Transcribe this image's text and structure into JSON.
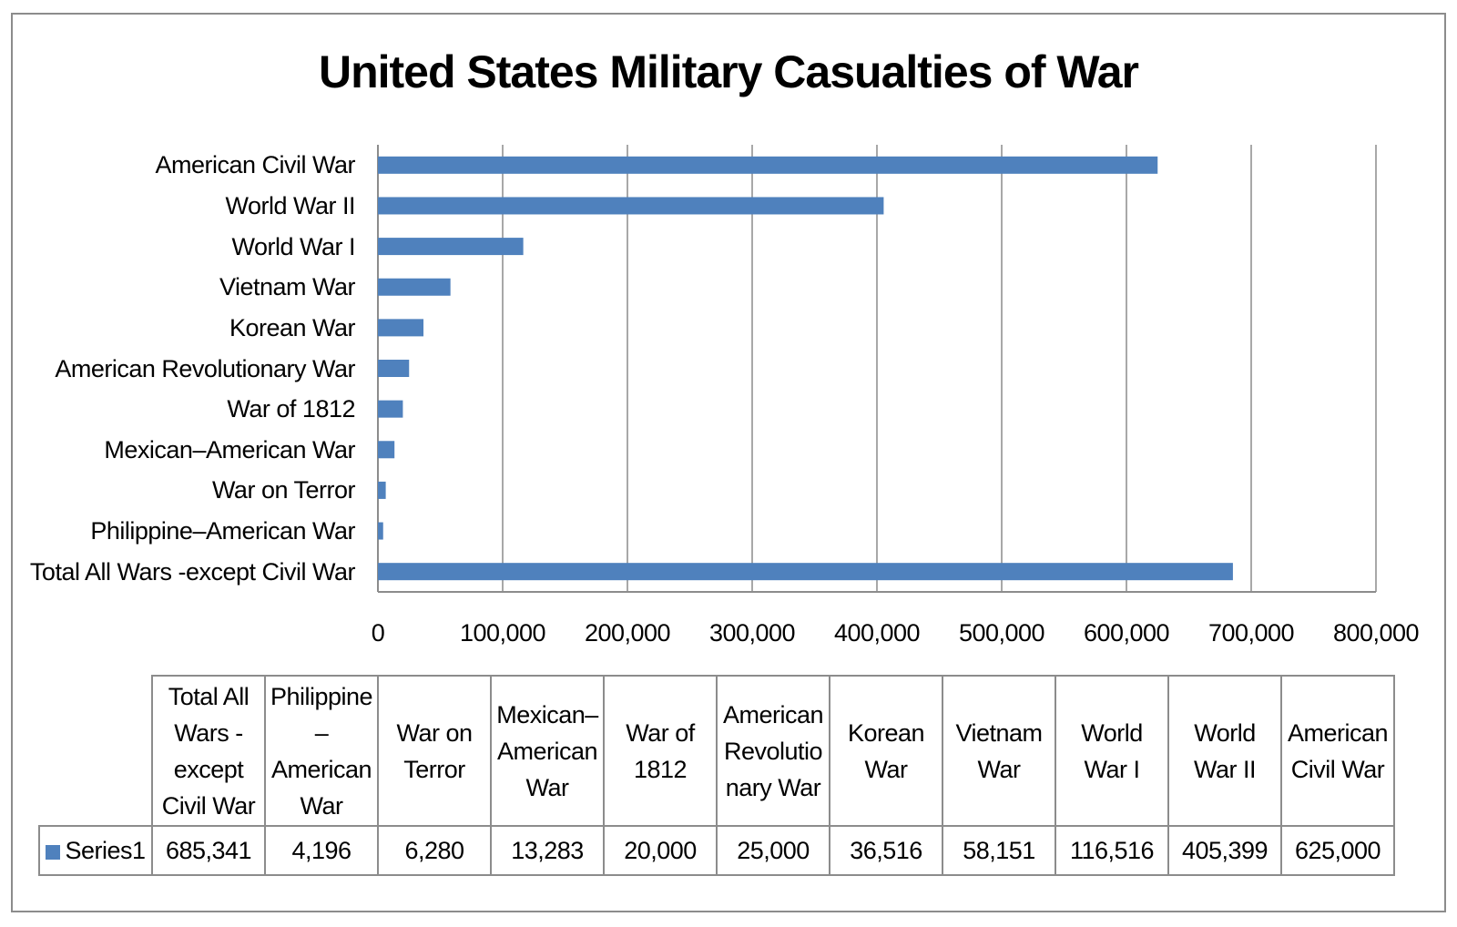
{
  "chart_data": {
    "type": "bar",
    "orientation": "horizontal",
    "title": "United States Military Casualties of War",
    "categories": [
      "American Civil War",
      "World War II",
      "World War I",
      "Vietnam War",
      "Korean War",
      "American Revolutionary War",
      "War of 1812",
      "Mexican–American War",
      "War on Terror",
      "Philippine–American War",
      "Total All Wars -except Civil War"
    ],
    "series": [
      {
        "name": "Series1",
        "color": "#4f81bd",
        "values": [
          625000,
          405399,
          116516,
          58151,
          36516,
          25000,
          20000,
          13283,
          6280,
          4196,
          685341
        ]
      }
    ],
    "xlim": [
      0,
      800000
    ],
    "x_ticks": [
      "0",
      "100,000",
      "200,000",
      "300,000",
      "400,000",
      "500,000",
      "600,000",
      "700,000",
      "800,000"
    ],
    "grid": "vertical",
    "legend": "data-table",
    "data_table": {
      "columns": [
        "Total All Wars - except Civil War",
        "Philippine –American War",
        "War on Terror",
        "Mexican– American War",
        "War of 1812",
        "American Revolutio nary War",
        "Korean War",
        "Vietnam War",
        "World War I",
        "World War II",
        "American Civil War"
      ],
      "row_label": "Series1",
      "row_values": [
        "685,341",
        "4,196",
        "6,280",
        "13,283",
        "20,000",
        "25,000",
        "36,516",
        "58,151",
        "116,516",
        "405,399",
        "625,000"
      ]
    }
  }
}
